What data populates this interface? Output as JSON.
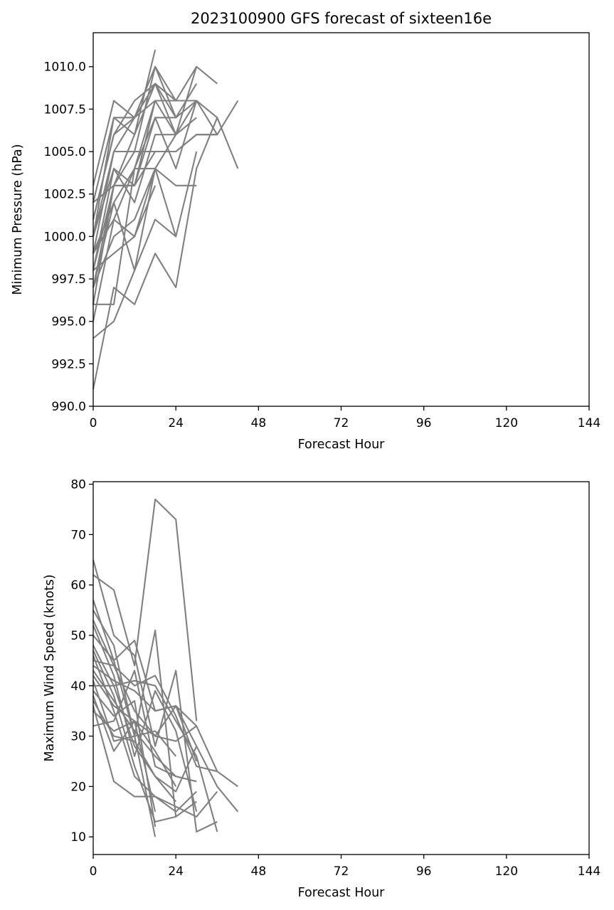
{
  "chart_data": [
    {
      "type": "line",
      "title": "2023100900 GFS forecast of sixteen16e",
      "xlabel": "Forecast Hour",
      "ylabel": "Minimum Pressure (hPa)",
      "xlim": [
        0,
        144
      ],
      "ylim": [
        990.0,
        1012.0
      ],
      "xticks": [
        0,
        24,
        48,
        72,
        96,
        120,
        144
      ],
      "xtick_labels": [
        "0",
        "24",
        "48",
        "72",
        "96",
        "120",
        "144"
      ],
      "yticks": [
        990.0,
        992.5,
        995.0,
        997.5,
        1000.0,
        1002.5,
        1005.0,
        1007.5,
        1010.0
      ],
      "ytick_labels": [
        "990.0",
        "992.5",
        "995.0",
        "997.5",
        "1000.0",
        "1002.5",
        "1005.0",
        "1007.5",
        "1010.0"
      ],
      "grid": false,
      "line_color": "#808080",
      "series": [
        {
          "x": [
            0,
            6,
            12,
            18,
            24,
            30,
            36
          ],
          "values": [
            991,
            997,
            996,
            999,
            997,
            1004,
            1007
          ]
        },
        {
          "x": [
            0,
            6,
            12,
            18,
            24
          ],
          "values": [
            994,
            995,
            998,
            1001,
            1000
          ]
        },
        {
          "x": [
            0,
            6,
            12,
            18,
            24,
            30
          ],
          "values": [
            995,
            1001,
            1000,
            1004,
            1003,
            1003
          ]
        },
        {
          "x": [
            0,
            6,
            12,
            18,
            24,
            30,
            36,
            42
          ],
          "values": [
            996,
            1003,
            1003,
            1005,
            1005,
            1006,
            1006,
            1008
          ]
        },
        {
          "x": [
            0,
            6,
            12,
            18,
            24,
            30
          ],
          "values": [
            997,
            1000,
            1001,
            1004,
            1006,
            1008
          ]
        },
        {
          "x": [
            0,
            6,
            12,
            18,
            24,
            30,
            36,
            42
          ],
          "values": [
            998,
            1003,
            1003,
            1007,
            1007,
            1008,
            1007,
            1004
          ]
        },
        {
          "x": [
            0,
            6,
            12,
            18
          ],
          "values": [
            998,
            999,
            1000,
            1003
          ]
        },
        {
          "x": [
            0,
            6,
            12,
            18,
            24
          ],
          "values": [
            999,
            1002,
            1004,
            1008,
            1006
          ]
        },
        {
          "x": [
            0,
            6,
            12,
            18
          ],
          "values": [
            1000,
            1004,
            1003,
            1008
          ]
        },
        {
          "x": [
            0,
            6,
            12,
            18,
            24,
            30
          ],
          "values": [
            1000,
            1005,
            1007,
            1009,
            1007,
            1009
          ]
        },
        {
          "x": [
            0,
            6,
            12,
            18,
            24,
            30,
            36
          ],
          "values": [
            1001,
            1006,
            1007,
            1010,
            1008,
            1010,
            1009
          ]
        },
        {
          "x": [
            0,
            6,
            12,
            18
          ],
          "values": [
            1002,
            1007,
            1006,
            1011
          ]
        },
        {
          "x": [
            0,
            6,
            12,
            18,
            24
          ],
          "values": [
            1003,
            1008,
            1007,
            1009,
            1008
          ]
        },
        {
          "x": [
            0,
            6,
            12,
            18,
            24,
            30,
            36
          ],
          "values": [
            999,
            1005,
            1005,
            1005,
            1005,
            1006,
            1006
          ]
        },
        {
          "x": [
            0,
            6,
            12,
            18
          ],
          "values": [
            997,
            1002,
            998,
            1004
          ]
        },
        {
          "x": [
            0,
            6,
            12,
            18,
            24,
            30
          ],
          "values": [
            996,
            996,
            1004,
            1004,
            1000,
            1005
          ]
        },
        {
          "x": [
            0,
            6,
            12,
            18,
            24,
            30
          ],
          "values": [
            1001,
            1006,
            1008,
            1009,
            1006,
            1010
          ]
        },
        {
          "x": [
            0,
            6,
            12,
            18,
            24,
            30,
            36
          ],
          "values": [
            1000,
            1007,
            1007,
            1008,
            1008,
            1008,
            1006
          ]
        },
        {
          "x": [
            0,
            6,
            12,
            18,
            24,
            30
          ],
          "values": [
            998,
            1004,
            1002,
            1006,
            1006,
            1007
          ]
        },
        {
          "x": [
            0,
            6,
            12,
            18,
            24
          ],
          "values": [
            1002,
            1003,
            1005,
            1010,
            1007
          ]
        },
        {
          "x": [
            0,
            6,
            12,
            18,
            24,
            30
          ],
          "values": [
            999,
            1001,
            1004,
            1007,
            1004,
            1008
          ]
        },
        {
          "x": [
            0,
            6,
            12,
            18,
            24,
            30
          ],
          "values": [
            997,
            1003,
            1006,
            1009,
            1008,
            1008
          ]
        }
      ]
    },
    {
      "type": "line",
      "title": "",
      "xlabel": "Forecast Hour",
      "ylabel": "Maximum Wind Speed (knots)",
      "xlim": [
        0,
        144
      ],
      "ylim": [
        6.5,
        80.5
      ],
      "xticks": [
        0,
        24,
        48,
        72,
        96,
        120,
        144
      ],
      "xtick_labels": [
        "0",
        "24",
        "48",
        "72",
        "96",
        "120",
        "144"
      ],
      "yticks": [
        10,
        20,
        30,
        40,
        50,
        60,
        70,
        80
      ],
      "ytick_labels": [
        "10",
        "20",
        "30",
        "40",
        "50",
        "60",
        "70",
        "80"
      ],
      "grid": false,
      "line_color": "#808080",
      "series": [
        {
          "x": [
            0,
            6,
            12,
            18,
            24,
            30
          ],
          "values": [
            62,
            59,
            44,
            77,
            73,
            33
          ]
        },
        {
          "x": [
            0,
            6,
            12,
            18,
            24,
            30,
            36
          ],
          "values": [
            65,
            50,
            46,
            28,
            43,
            11,
            13
          ]
        },
        {
          "x": [
            0,
            6,
            12,
            18,
            24,
            30
          ],
          "values": [
            57,
            45,
            30,
            51,
            14,
            17
          ]
        },
        {
          "x": [
            0,
            6,
            12,
            18
          ],
          "values": [
            55,
            48,
            30,
            10
          ]
        },
        {
          "x": [
            0,
            6,
            12,
            18,
            24,
            30
          ],
          "values": [
            53,
            44,
            35,
            30,
            36,
            25
          ]
        },
        {
          "x": [
            0,
            6,
            12,
            18,
            24,
            30,
            36,
            42
          ],
          "values": [
            50,
            45,
            49,
            35,
            36,
            28,
            20,
            15
          ]
        },
        {
          "x": [
            0,
            6,
            12,
            18,
            24
          ],
          "values": [
            48,
            40,
            28,
            22,
            17
          ]
        },
        {
          "x": [
            0,
            6,
            12,
            18,
            24,
            30
          ],
          "values": [
            46,
            35,
            22,
            18,
            15,
            19
          ]
        },
        {
          "x": [
            0,
            6,
            12,
            18,
            24,
            30,
            36
          ],
          "values": [
            45,
            44,
            40,
            42,
            34,
            24,
            23
          ]
        },
        {
          "x": [
            0,
            6,
            12,
            18,
            24,
            30,
            36,
            42
          ],
          "values": [
            44,
            41,
            39,
            35,
            36,
            32,
            23,
            20
          ]
        },
        {
          "x": [
            0,
            6,
            12,
            18
          ],
          "values": [
            42,
            36,
            33,
            15
          ]
        },
        {
          "x": [
            0,
            6,
            12,
            18,
            24
          ],
          "values": [
            41,
            29,
            30,
            31,
            26
          ]
        },
        {
          "x": [
            0,
            6,
            12,
            18,
            24,
            30,
            36
          ],
          "values": [
            40,
            40,
            41,
            40,
            33,
            26,
            11
          ]
        },
        {
          "x": [
            0,
            6,
            12,
            18,
            24,
            30
          ],
          "values": [
            38,
            27,
            33,
            30,
            29,
            32
          ]
        },
        {
          "x": [
            0,
            6,
            12,
            18,
            24,
            30,
            36
          ],
          "values": [
            36,
            21,
            18,
            18,
            16,
            14,
            19
          ]
        },
        {
          "x": [
            0,
            6,
            12,
            18,
            24
          ],
          "values": [
            35,
            31,
            33,
            27,
            20
          ]
        },
        {
          "x": [
            0,
            6,
            12,
            18,
            24,
            30
          ],
          "values": [
            32,
            33,
            43,
            24,
            22,
            21
          ]
        },
        {
          "x": [
            0,
            6,
            12,
            18,
            24
          ],
          "values": [
            47,
            38,
            24,
            13,
            14
          ]
        },
        {
          "x": [
            0,
            6,
            12,
            18,
            24,
            30
          ],
          "values": [
            52,
            42,
            26,
            39,
            31,
            15
          ]
        },
        {
          "x": [
            0,
            6,
            12,
            18
          ],
          "values": [
            39,
            34,
            37,
            12
          ]
        },
        {
          "x": [
            0,
            6,
            12,
            18,
            24
          ],
          "values": [
            43,
            37,
            31,
            26,
            22
          ]
        },
        {
          "x": [
            0,
            6,
            12,
            18,
            24,
            30
          ],
          "values": [
            37,
            30,
            29,
            22,
            19,
            28
          ]
        }
      ]
    }
  ]
}
